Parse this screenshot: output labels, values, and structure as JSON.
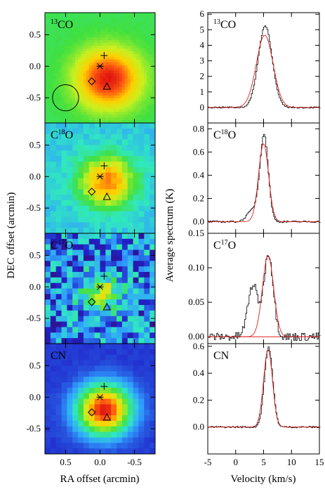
{
  "chart_data": [
    {
      "type": "heatmap",
      "xlabel": "RA offset (arcmin)",
      "ylabel": "DEC offset (arcmin)",
      "xlim": [
        0.8,
        -0.8
      ],
      "ylim": [
        -0.9,
        0.85
      ],
      "x_ticks": [
        "0.5",
        "0.0",
        "-0.5"
      ],
      "y_ticks": [
        "0.5",
        "0.0",
        "-0.5"
      ],
      "colormap": [
        "#3a0a6e",
        "#2020c8",
        "#30a0ff",
        "#30e8c0",
        "#40e040",
        "#c8f020",
        "#ffd000",
        "#ff6010",
        "#e01010"
      ],
      "markers": {
        "plus": {
          "x": -0.06,
          "y": 0.17
        },
        "asterisk": {
          "x": 0.0,
          "y": 0.0
        },
        "diamond": {
          "x": 0.12,
          "y": -0.24
        },
        "triangle": {
          "x": -0.1,
          "y": -0.32
        }
      },
      "beam": {
        "x": 0.5,
        "y": -0.5,
        "diameter": 0.38
      },
      "panels": [
        {
          "label_main": "CO",
          "label_sup": "13",
          "label_pre": "",
          "background": "#60e040",
          "peak": {
            "x": -0.12,
            "y": -0.2,
            "width": 0.32,
            "amp": 1.0
          },
          "noise": 0.02
        },
        {
          "label_main": "O",
          "label_sup": "18",
          "label_pre": "C",
          "background": "#30b8f0",
          "peak": {
            "x": -0.1,
            "y": -0.08,
            "width": 0.28,
            "amp": 0.8
          },
          "noise": 0.08
        },
        {
          "label_main": "O",
          "label_sup": "17",
          "label_pre": "C",
          "background": "#2850d8",
          "peak": {
            "x": -0.02,
            "y": -0.1,
            "width": 0.2,
            "amp": 0.55
          },
          "noise": 0.35
        },
        {
          "label_main": "CN",
          "label_sup": "",
          "label_pre": "",
          "background": "#3030c0",
          "peak": {
            "x": -0.06,
            "y": -0.2,
            "width": 0.26,
            "amp": 1.0
          },
          "noise": 0.02
        }
      ]
    },
    {
      "type": "line",
      "xlabel": "Velocity (km/s)",
      "ylabel": "Average spectrum (K)",
      "xlim": [
        -5,
        15
      ],
      "x_ticks": [
        "-5",
        "0",
        "5",
        "10",
        "15"
      ],
      "series_colors": {
        "observed": "#000000",
        "fit": "#e02020"
      },
      "panels": [
        {
          "label_main": "CO",
          "label_sup": "13",
          "label_pre": "",
          "ylim": [
            -1,
            6.1
          ],
          "y_ticks": [
            "0",
            "1",
            "2",
            "3",
            "4",
            "5",
            "6"
          ],
          "y_tick_values": [
            0,
            1,
            2,
            3,
            4,
            5,
            6
          ],
          "observed": {
            "components": [
              {
                "v": 5.2,
                "sigma": 1.25,
                "amp": 5.25
              }
            ]
          },
          "fit": {
            "components": [
              {
                "v": 5.2,
                "sigma": 1.5,
                "amp": 4.65
              }
            ]
          },
          "noise": 0.05
        },
        {
          "label_main": "O",
          "label_sup": "18",
          "label_pre": "C",
          "ylim": [
            -0.1,
            0.85
          ],
          "y_ticks": [
            "0.0",
            "0.2",
            "0.4",
            "0.6",
            "0.8"
          ],
          "y_tick_values": [
            0,
            0.2,
            0.4,
            0.6,
            0.8
          ],
          "observed": {
            "components": [
              {
                "v": 5.0,
                "sigma": 0.75,
                "amp": 0.74
              },
              {
                "v": 3.0,
                "sigma": 1.0,
                "amp": 0.1
              }
            ]
          },
          "fit": {
            "components": [
              {
                "v": 5.0,
                "sigma": 0.9,
                "amp": 0.67
              }
            ]
          },
          "noise": 0.008
        },
        {
          "label_main": "O",
          "label_sup": "17",
          "label_pre": "C",
          "ylim": [
            -0.01,
            0.15
          ],
          "y_ticks": [
            "0.00",
            "0.05",
            "0.10",
            "0.15"
          ],
          "y_tick_values": [
            0,
            0.05,
            0.1,
            0.15
          ],
          "observed": {
            "components": [
              {
                "v": 5.8,
                "sigma": 0.85,
                "amp": 0.12
              },
              {
                "v": 3.0,
                "sigma": 0.9,
                "amp": 0.075
              }
            ]
          },
          "fit": {
            "components": [
              {
                "v": 5.8,
                "sigma": 1.0,
                "amp": 0.118
              }
            ]
          },
          "noise": 0.006
        },
        {
          "label_main": "CN",
          "label_sup": "",
          "label_pre": "",
          "ylim": [
            -0.2,
            0.62
          ],
          "y_ticks": [
            "0.0",
            "0.2",
            "0.4",
            "0.6"
          ],
          "y_tick_values": [
            0,
            0.2,
            0.4,
            0.6
          ],
          "observed": {
            "components": [
              {
                "v": 5.8,
                "sigma": 0.75,
                "amp": 0.59
              }
            ]
          },
          "fit": {
            "components": [
              {
                "v": 5.8,
                "sigma": 0.8,
                "amp": 0.575
              }
            ]
          },
          "noise": 0.006
        }
      ]
    }
  ]
}
